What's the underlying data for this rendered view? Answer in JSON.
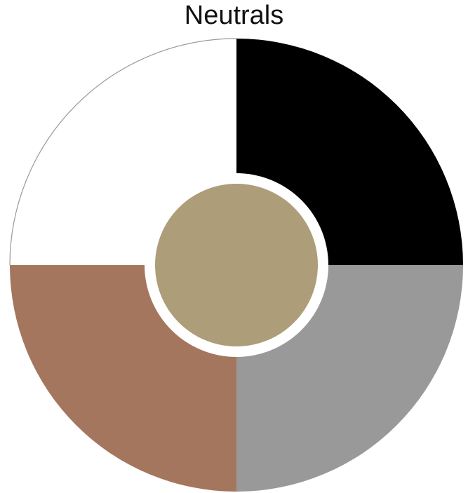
{
  "title": "Neutrals",
  "wheel": {
    "segments": [
      {
        "name": "black",
        "color": "#000000",
        "position": "top-right"
      },
      {
        "name": "gray",
        "color": "#999999",
        "position": "bottom-right"
      },
      {
        "name": "brown",
        "color": "#a4765e",
        "position": "bottom-left"
      },
      {
        "name": "white",
        "color": "#ffffff",
        "position": "top-left"
      }
    ],
    "center": {
      "name": "tan",
      "color": "#ad9d78"
    },
    "outline_color": "#9a9a9a",
    "gap_color": "#ffffff"
  }
}
